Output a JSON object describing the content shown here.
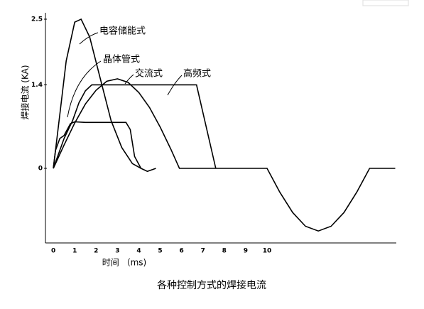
{
  "chart_data": {
    "type": "line",
    "title": "各种控制方式的焊接电流",
    "x_label": "时间 （ms)",
    "y_label": "焊接电流 (KA)",
    "xlim": [
      -0.37,
      16.05
    ],
    "ylim": [
      -1.25,
      2.5
    ],
    "xticks": [
      0,
      1,
      2,
      3,
      4,
      5,
      6,
      7,
      8,
      9,
      10
    ],
    "yticks": [
      0,
      1.4,
      2.5
    ],
    "series": [
      {
        "name": "电容储能式",
        "color": "#000000",
        "x": [
          0,
          0.3,
          0.6,
          1.0,
          1.3,
          1.7,
          2.2,
          2.7,
          3.2,
          3.7,
          4.1,
          4.4,
          4.8
        ],
        "values": [
          0,
          0.9,
          1.8,
          2.45,
          2.5,
          2.2,
          1.5,
          0.8,
          0.35,
          0.08,
          0,
          -0.05,
          0
        ]
      },
      {
        "name": "晶体管式",
        "color": "#000000",
        "x": [
          0,
          0.1,
          0.3,
          0.5,
          0.8,
          1.0,
          1.5,
          3.4,
          3.6,
          3.8,
          4.1
        ],
        "values": [
          0,
          0.3,
          0.5,
          0.55,
          0.75,
          0.78,
          0.77,
          0.77,
          0.65,
          0.2,
          0
        ]
      },
      {
        "name": "交流式",
        "color": "#000000",
        "x": [
          0,
          0.5,
          1,
          1.5,
          2,
          2.5,
          3,
          3.5,
          4,
          4.5,
          5,
          5.5,
          5.9,
          10,
          10.6,
          11.2,
          11.8,
          12.4,
          13,
          13.6,
          14.2,
          14.8,
          16
        ],
        "values": [
          0,
          0.39,
          0.76,
          1.08,
          1.31,
          1.46,
          1.5,
          1.44,
          1.27,
          1.02,
          0.69,
          0.32,
          0,
          0,
          -0.4,
          -0.74,
          -0.97,
          -1.05,
          -0.97,
          -0.74,
          -0.4,
          0,
          0
        ]
      },
      {
        "name": "高频式",
        "color": "#000000",
        "x": [
          0,
          0.5,
          0.9,
          1.2,
          1.5,
          1.8,
          6.7,
          7.6
        ],
        "values": [
          0,
          0.5,
          0.8,
          1.1,
          1.3,
          1.4,
          1.4,
          0
        ]
      }
    ]
  }
}
